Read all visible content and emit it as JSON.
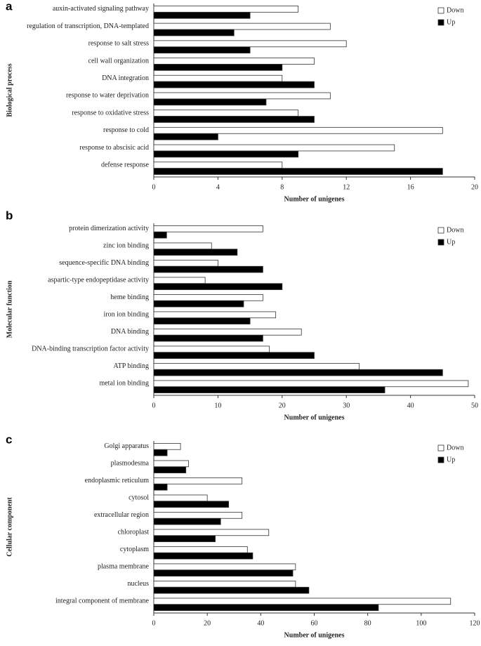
{
  "chart_data": [
    {
      "type": "hbar",
      "panel_label": "a",
      "y_label": "Biological process",
      "x_label": "Number of unigenes",
      "categories": [
        "auxin-activated signaling pathway",
        "regulation of transcription, DNA-templated",
        "response to salt stress",
        "cell wall organization",
        "DNA integration",
        "response to water deprivation",
        "response to oxidative stress",
        "response to cold",
        "response to abscisic acid",
        "defense response"
      ],
      "series": [
        {
          "name": "Down",
          "color": "#ffffff",
          "values": [
            9,
            11,
            12,
            10,
            8,
            11,
            9,
            18,
            15,
            8
          ]
        },
        {
          "name": "Up",
          "color": "#000000",
          "values": [
            6,
            5,
            6,
            8,
            10,
            7,
            10,
            4,
            9,
            18
          ]
        }
      ],
      "xlim": [
        0,
        20
      ],
      "xticks": [
        0,
        4,
        8,
        12,
        16,
        20
      ],
      "legend": "upper right"
    },
    {
      "type": "hbar",
      "panel_label": "b",
      "y_label": "Molecular function",
      "x_label": "Number of unigenes",
      "categories": [
        "protein dimerization activity",
        "zinc ion binding",
        "sequence-specific DNA binding",
        "aspartic-type endopeptidase activity",
        "heme binding",
        "iron ion binding",
        "DNA binding",
        "DNA-binding transcription factor activity",
        "ATP binding",
        "metal ion binding"
      ],
      "series": [
        {
          "name": "Down",
          "color": "#ffffff",
          "values": [
            17,
            9,
            10,
            8,
            17,
            19,
            23,
            18,
            32,
            49
          ]
        },
        {
          "name": "Up",
          "color": "#000000",
          "values": [
            2,
            13,
            17,
            20,
            14,
            15,
            17,
            25,
            45,
            36
          ]
        }
      ],
      "xlim": [
        0,
        50
      ],
      "xticks": [
        0,
        10,
        20,
        30,
        40,
        50
      ],
      "legend": "upper right"
    },
    {
      "type": "hbar",
      "panel_label": "c",
      "y_label": "Cellular component",
      "x_label": "Number of unigenes",
      "categories": [
        "Golgi apparatus",
        "plasmodesma",
        "endoplasmic reticulum",
        "cytosol",
        "extracellular region",
        "chloroplast",
        "cytoplasm",
        "plasma membrane",
        "nucleus",
        "integral component of membrane"
      ],
      "series": [
        {
          "name": "Down",
          "color": "#ffffff",
          "values": [
            10,
            13,
            33,
            20,
            33,
            43,
            35,
            53,
            53,
            111
          ]
        },
        {
          "name": "Up",
          "color": "#000000",
          "values": [
            5,
            12,
            5,
            28,
            25,
            23,
            37,
            52,
            58,
            84
          ]
        }
      ],
      "xlim": [
        0,
        120
      ],
      "xticks": [
        0,
        20,
        40,
        60,
        80,
        100,
        120
      ],
      "legend": "upper right"
    }
  ]
}
